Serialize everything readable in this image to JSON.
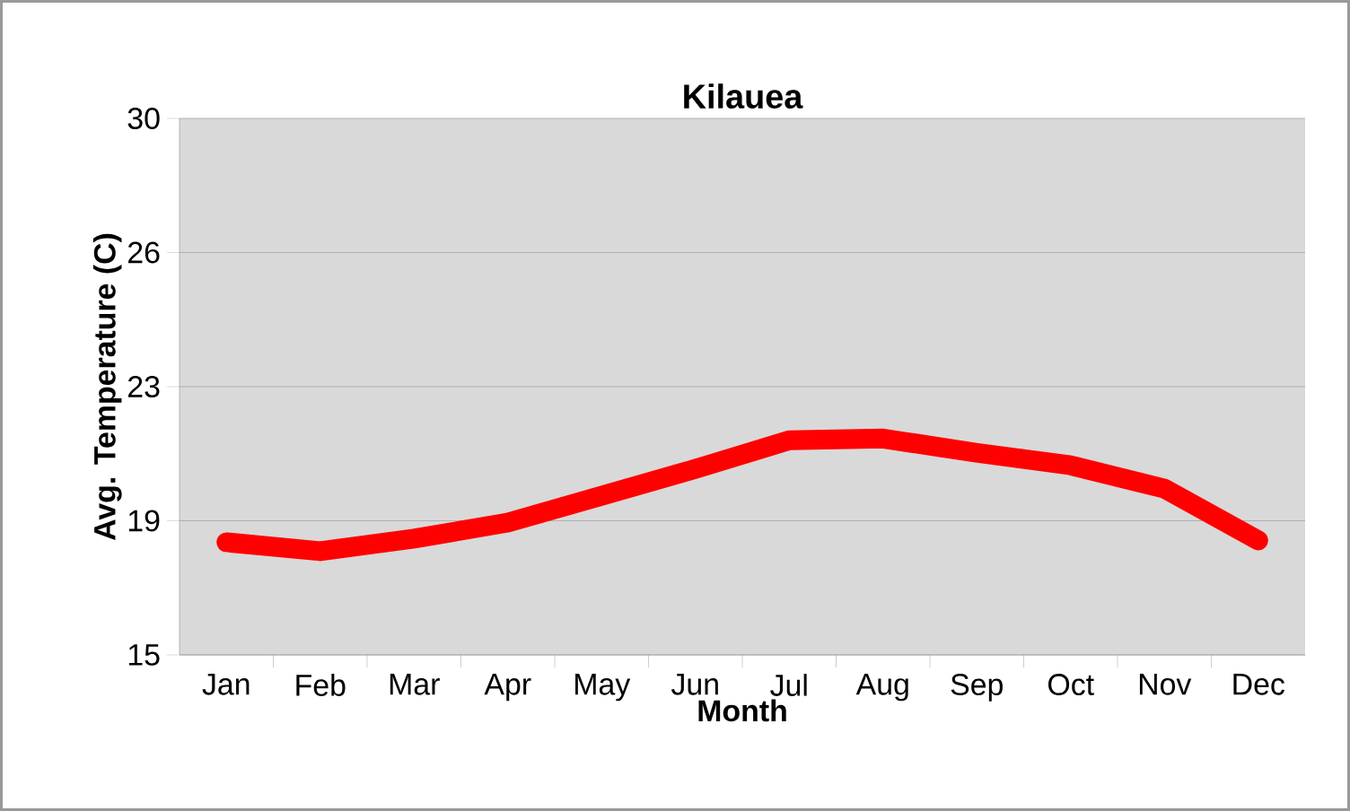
{
  "chart_data": {
    "type": "line",
    "title": "Kilauea",
    "xlabel": "Month",
    "ylabel": "Avg. Temperature (C)",
    "categories": [
      "Jan",
      "Feb",
      "Mar",
      "Apr",
      "May",
      "Jun",
      "Jul",
      "Aug",
      "Sep",
      "Oct",
      "Nov",
      "Dec"
    ],
    "values": [
      18.15,
      17.9,
      18.25,
      18.7,
      19.45,
      20.2,
      21.0,
      21.05,
      20.65,
      20.3,
      19.65,
      18.2
    ],
    "color": "#ff0000",
    "ylim": [
      15,
      30
    ],
    "yticks": [
      15,
      {
        "value": 18.75,
        "label": "19"
      },
      {
        "value": 22.5,
        "label": "23"
      },
      {
        "value": 26.25,
        "label": "26"
      },
      30
    ],
    "grid": "y"
  }
}
